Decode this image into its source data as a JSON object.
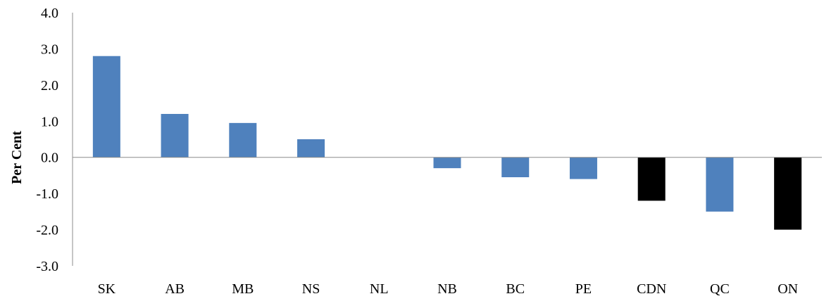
{
  "chart_data": {
    "type": "bar",
    "title": "",
    "xlabel": "",
    "ylabel": "Per Cent",
    "ylim": [
      -3.0,
      4.0
    ],
    "yticks": [
      4.0,
      3.0,
      2.0,
      1.0,
      0.0,
      -1.0,
      -2.0,
      -3.0
    ],
    "ytick_labels": [
      "4.0",
      "3.0",
      "2.0",
      "1.0",
      "0.0",
      "-1.0",
      "-2.0",
      "-3.0"
    ],
    "categories": [
      "SK",
      "AB",
      "MB",
      "NS",
      "NL",
      "NB",
      "BC",
      "PE",
      "CDN",
      "QC",
      "ON"
    ],
    "values": [
      2.8,
      1.2,
      0.95,
      0.5,
      0.0,
      -0.3,
      -0.55,
      -0.6,
      -1.2,
      -1.5,
      -2.0
    ],
    "bar_colors": [
      "#4f81bd",
      "#4f81bd",
      "#4f81bd",
      "#4f81bd",
      "#4f81bd",
      "#4f81bd",
      "#4f81bd",
      "#4f81bd",
      "#000000",
      "#4f81bd",
      "#000000"
    ],
    "grid": false,
    "legend": "none"
  }
}
